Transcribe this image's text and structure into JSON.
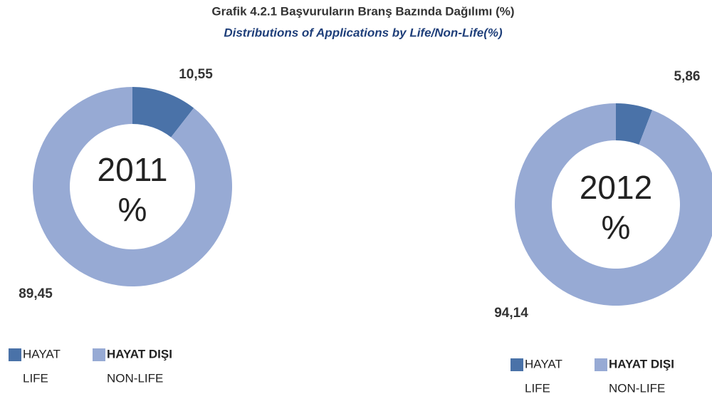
{
  "header": {
    "title": "Grafik 4.2.1 Başvuruların Branş Bazında Dağılımı (%)",
    "subtitle": "Distributions of Applications by Life/Non-Life(%)"
  },
  "chart_data": [
    {
      "type": "donut",
      "center_label": "2011",
      "center_unit": "%",
      "categories": [
        "HAYAT",
        "HAYAT DIŞI"
      ],
      "categories_en": [
        "LIFE",
        "NON-LIFE"
      ],
      "values": [
        10.55,
        89.45
      ],
      "value_labels": [
        "10,55",
        "89,45"
      ],
      "colors": [
        "#4a72a8",
        "#97aad4"
      ]
    },
    {
      "type": "donut",
      "center_label": "2012",
      "center_unit": "%",
      "categories": [
        "HAYAT",
        "HAYAT DIŞI"
      ],
      "categories_en": [
        "LIFE",
        "NON-LIFE"
      ],
      "values": [
        5.86,
        94.14
      ],
      "value_labels": [
        "5,86",
        "94,14"
      ],
      "colors": [
        "#4a72a8",
        "#97aad4"
      ]
    }
  ]
}
